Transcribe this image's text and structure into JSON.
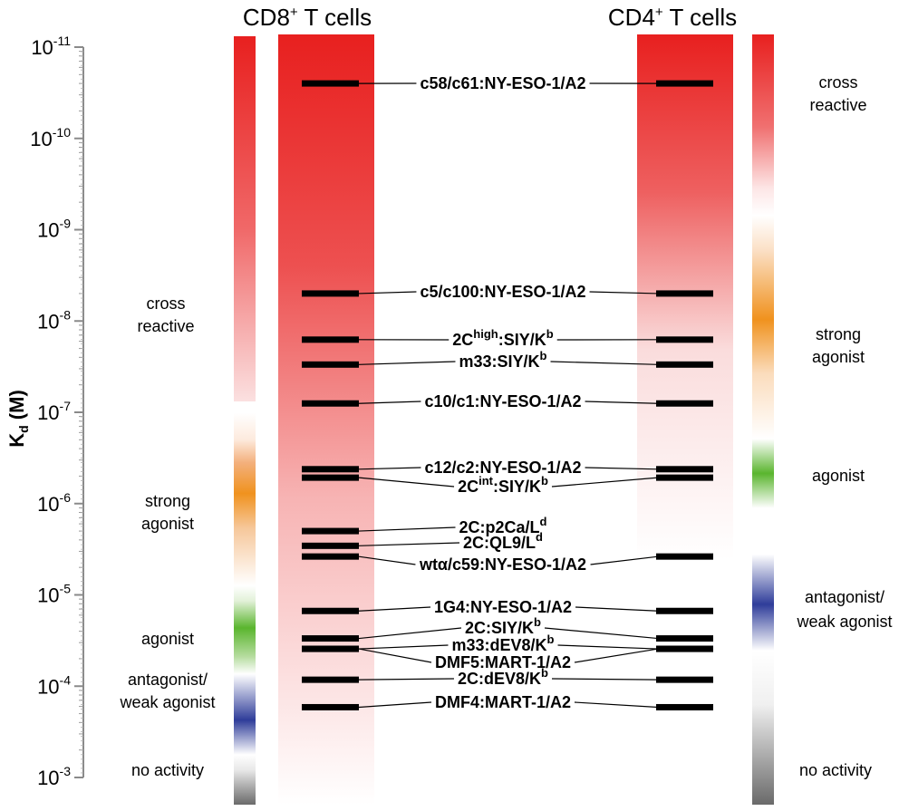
{
  "headers": {
    "cd8": "CD8",
    "cd8_sup": "+",
    "cd8_rest": " T cells",
    "cd4": "CD4",
    "cd4_sup": "+",
    "cd4_rest": " T cells"
  },
  "y_axis": {
    "label_main": "K",
    "label_sub": "d",
    "label_rest": " (M)",
    "tick_base": "10",
    "ticks": [
      {
        "exp": "-11"
      },
      {
        "exp": "-10"
      },
      {
        "exp": "-9"
      },
      {
        "exp": "-8"
      },
      {
        "exp": "-7"
      },
      {
        "exp": "-6"
      },
      {
        "exp": "-5"
      },
      {
        "exp": "-4"
      },
      {
        "exp": "-3"
      }
    ]
  },
  "cd8_categories": [
    {
      "line1": "cross",
      "line2": "reactive"
    },
    {
      "line1": "strong",
      "line2": "agonist"
    },
    {
      "line1": "agonist",
      "line2": ""
    },
    {
      "line1": "antagonist/",
      "line2": "weak agonist"
    },
    {
      "line1": "no activity",
      "line2": ""
    }
  ],
  "cd4_categories": [
    {
      "line1": "cross",
      "line2": "reactive"
    },
    {
      "line1": "strong",
      "line2": "agonist"
    },
    {
      "line1": "agonist",
      "line2": ""
    },
    {
      "line1": "antagonist/",
      "line2": "weak agonist"
    },
    {
      "line1": "no activity",
      "line2": ""
    }
  ],
  "colors": {
    "red": "#e8201f",
    "orange": "#f0921e",
    "green": "#5ab52e",
    "blue": "#2f3d9a",
    "gray": "#707070",
    "bar": "#000000"
  },
  "complexes": [
    {
      "text": "c58/c61:NY-ESO-1/A2",
      "sup": "",
      "tail": "",
      "sup2": "",
      "kd": 2.5e-11,
      "cd4": true
    },
    {
      "text": "c5/c100:NY-ESO-1/A2",
      "sup": "",
      "tail": "",
      "sup2": "",
      "kd": 5e-09,
      "cd4": true
    },
    {
      "text": "2C",
      "sup": "high",
      "tail": ":SIY/K",
      "sup2": "b",
      "kd": 1.6e-08,
      "cd4": true
    },
    {
      "text": "m33:SIY/K",
      "sup": "b",
      "tail": "",
      "sup2": "",
      "kd": 3e-08,
      "cd4": true
    },
    {
      "text": "c10/c1:NY-ESO-1/A2",
      "sup": "",
      "tail": "",
      "sup2": "",
      "kd": 8e-08,
      "cd4": true
    },
    {
      "text": "c12/c2:NY-ESO-1/A2",
      "sup": "",
      "tail": "",
      "sup2": "",
      "kd": 4.2e-07,
      "cd4": true
    },
    {
      "text": "2C",
      "sup": "int",
      "tail": ":SIY/K",
      "sup2": "b",
      "kd": 5.2e-07,
      "cd4": true
    },
    {
      "text": "2C:p2Ca/L",
      "sup": "d",
      "tail": "",
      "sup2": "",
      "kd": 2e-06,
      "cd4": false
    },
    {
      "text": "2C:QL9/L",
      "sup": "d",
      "tail": "",
      "sup2": "",
      "kd": 2.9e-06,
      "cd4": false
    },
    {
      "text": "wtα/c59:NY-ESO-1/A2",
      "sup": "",
      "tail": "",
      "sup2": "",
      "kd": 3.8e-06,
      "cd4": true
    },
    {
      "text": "1G4:NY-ESO-1/A2",
      "sup": "",
      "tail": "",
      "sup2": "",
      "kd": 1.5e-05,
      "cd4": true
    },
    {
      "text": "2C:SIY/K",
      "sup": "b",
      "tail": "",
      "sup2": "",
      "kd": 3e-05,
      "cd4": true
    },
    {
      "text": "m33:dEV8/K",
      "sup": "b",
      "tail": "",
      "sup2": "",
      "kd": 3.9e-05,
      "cd4": true
    },
    {
      "text": "DMF5:MART-1/A2",
      "sup": "",
      "tail": "",
      "sup2": "",
      "kd": 3.9e-05,
      "cd4": true
    },
    {
      "text": "2C:dEV8/K",
      "sup": "b",
      "tail": "",
      "sup2": "",
      "kd": 8.5e-05,
      "cd4": true
    },
    {
      "text": "DMF4:MART-1/A2",
      "sup": "",
      "tail": "",
      "sup2": "",
      "kd": 0.00017,
      "cd4": true
    }
  ]
}
